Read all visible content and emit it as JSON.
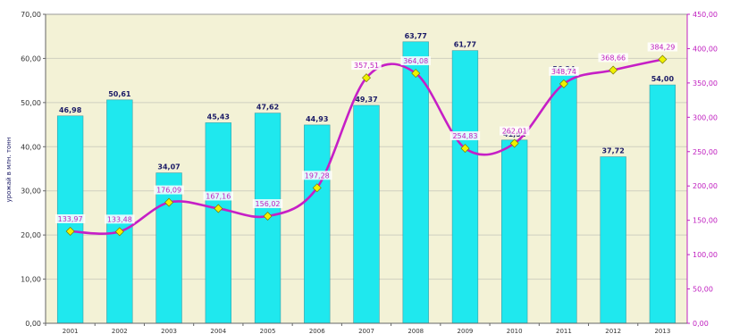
{
  "chart_data": {
    "type": "bar",
    "categories": [
      "2001",
      "2002",
      "2003",
      "2004",
      "2005",
      "2006",
      "2007",
      "2008",
      "2009",
      "2010",
      "2011",
      "2012",
      "2013"
    ],
    "series": [
      {
        "type": "bar",
        "axis": "left",
        "color": "#1fe8ee",
        "values": [
          46.98,
          50.61,
          34.07,
          45.43,
          47.62,
          44.93,
          49.37,
          63.77,
          61.77,
          41.51,
          56.24,
          37.72,
          54.0
        ],
        "labels": [
          "46,98",
          "50,61",
          "34,07",
          "45,43",
          "47,62",
          "44,93",
          "49,37",
          "63,77",
          "61,77",
          "41,51",
          "56,24",
          "37,72",
          "54,00"
        ]
      },
      {
        "type": "line",
        "axis": "right",
        "color": "#c61fc6",
        "marker_color": "#f0f000",
        "values": [
          133.97,
          133.48,
          176.09,
          167.16,
          156.02,
          197.28,
          357.51,
          364.08,
          254.83,
          262.01,
          348.74,
          368.66,
          384.29
        ],
        "labels": [
          "133,97",
          "133,48",
          "176,09",
          "167,16",
          "156,02",
          "197,28",
          "357,51",
          "364,08",
          "254,83",
          "262,01",
          "348,74",
          "368,66",
          "384,29"
        ]
      }
    ],
    "ylabel": "урожай в млн. тонн",
    "ylim": [
      0,
      70
    ],
    "yticks": [
      "0,00",
      "10,00",
      "20,00",
      "30,00",
      "40,00",
      "50,00",
      "60,00",
      "70,00"
    ],
    "y2lim": [
      0,
      450
    ],
    "y2ticks": [
      "0,00",
      "50,00",
      "100,00",
      "150,00",
      "200,00",
      "250,00",
      "300,00",
      "350,00",
      "400,00",
      "450,00"
    ],
    "grid": true,
    "plot_background": "#f3f2d6"
  }
}
